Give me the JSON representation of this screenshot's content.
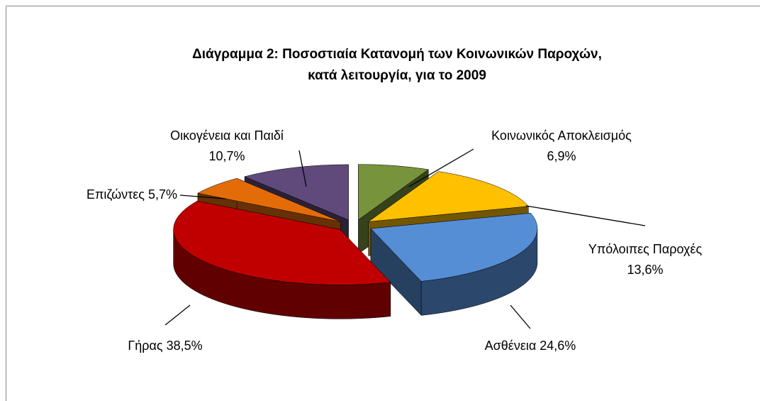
{
  "chart_data": {
    "type": "pie3d",
    "title": "Διάγραμμα 2: Ποσοστιαία Κατανομή των Κοινωνικών Παροχών,",
    "subtitle": "κατά  λειτουργία, για το 2009",
    "categories": [
      "Κοινωνικός Αποκλεισμός",
      "Υπόλοιπες Παροχές",
      "Ασθένεια",
      "Γήρας",
      "Επιζώντες",
      "Οικογένεια και Παιδί"
    ],
    "values": [
      6.9,
      13.6,
      24.6,
      38.5,
      5.7,
      10.7
    ],
    "value_labels": [
      "6,9%",
      "13,6%",
      "24,6%",
      "38,5%",
      "5,7%",
      "10,7%"
    ],
    "colors": [
      "#77933c",
      "#ffc000",
      "#558ed5",
      "#c00000",
      "#e36c09",
      "#604a7b"
    ]
  }
}
